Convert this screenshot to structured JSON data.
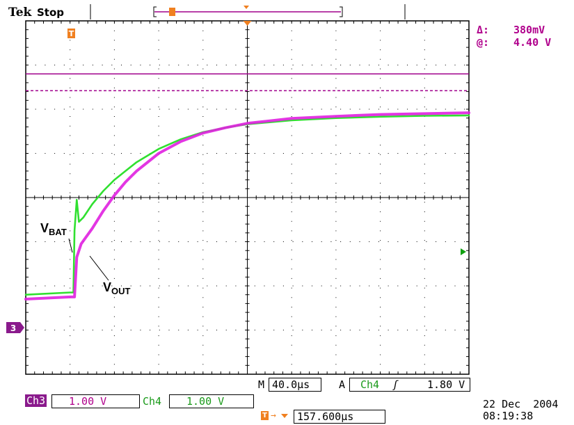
{
  "header": {
    "brand": "Tek",
    "status": "Stop"
  },
  "cursor_readout": {
    "delta_label": "Δ:",
    "delta_value": "380mV",
    "at_label": "@:",
    "at_value": "4.40 V"
  },
  "markers": {
    "trigger_marker": "T",
    "channel_marker": "3"
  },
  "trace_labels": {
    "vbat_main": "V",
    "vbat_sub": "BAT",
    "vout_main": "V",
    "vout_sub": "OUT"
  },
  "settings": {
    "timebase_prefix": "M",
    "timebase": "40.0µs",
    "trigger_prefix": "A",
    "trigger_source": "Ch4",
    "trigger_slope": "ʃ",
    "trigger_level": "1.80 V",
    "ch3_label": "Ch3",
    "ch3_scale": "1.00 V",
    "ch4_label": "Ch4",
    "ch4_scale": "1.00 V",
    "trigger_position": "157.600µs",
    "date": "22 Dec  2004",
    "time": "08:19:38"
  },
  "colors": {
    "ch3": "#e020e0",
    "ch4": "#30e030",
    "cursor": "#a0008c",
    "trigger": "#f08020",
    "grid": "#000000"
  },
  "chart_data": {
    "type": "line",
    "x_divisions": 10,
    "y_divisions": 8,
    "x_unit": "µs",
    "x_per_div": 40,
    "x_range": [
      0,
      400
    ],
    "y_range_div": [
      -4,
      4
    ],
    "grid": true,
    "cursors_div": [
      2.8,
      2.42
    ],
    "series": [
      {
        "name": "VBAT",
        "channel": "Ch4",
        "x": [
          0,
          40,
          43,
          44,
          46,
          48,
          52,
          60,
          70,
          80,
          90,
          100,
          120,
          140,
          160,
          180,
          200,
          240,
          280,
          320,
          360,
          400
        ],
        "y_div": [
          -2.2,
          -2.15,
          -2.15,
          -0.75,
          -0.05,
          -0.55,
          -0.45,
          -0.15,
          0.15,
          0.4,
          0.6,
          0.8,
          1.1,
          1.32,
          1.48,
          1.58,
          1.66,
          1.75,
          1.8,
          1.83,
          1.85,
          1.86
        ]
      },
      {
        "name": "VOUT",
        "channel": "Ch3",
        "x": [
          0,
          40,
          44,
          46,
          50,
          60,
          70,
          80,
          90,
          100,
          120,
          140,
          160,
          180,
          200,
          240,
          280,
          320,
          360,
          400
        ],
        "y_div": [
          -2.3,
          -2.25,
          -2.25,
          -1.35,
          -1.05,
          -0.7,
          -0.3,
          0.05,
          0.35,
          0.6,
          1.0,
          1.27,
          1.46,
          1.58,
          1.68,
          1.79,
          1.84,
          1.88,
          1.9,
          1.92
        ]
      }
    ]
  }
}
